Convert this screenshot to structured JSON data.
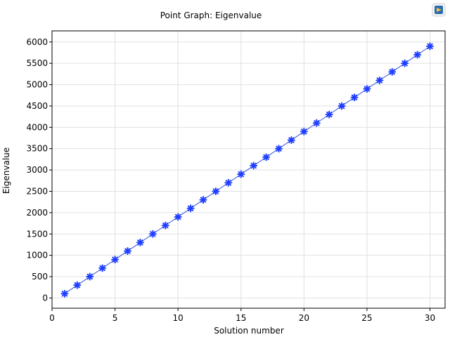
{
  "chart_data": {
    "type": "line",
    "title": "Point Graph: Eigenvalue",
    "xlabel": "Solution number",
    "ylabel": "Eigenvalue",
    "xlim": [
      0,
      31.2
    ],
    "ylim": [
      -240,
      6260
    ],
    "x_ticks": [
      0,
      5,
      10,
      15,
      20,
      25,
      30
    ],
    "y_ticks": [
      0,
      500,
      1000,
      1500,
      2000,
      2500,
      3000,
      3500,
      4000,
      4500,
      5000,
      5500,
      6000
    ],
    "grid": true,
    "legend": "none",
    "marker": "asterisk",
    "series_color": "#1f3fff",
    "line_color": "#3355dd",
    "grid_color": "#e0e0e0",
    "x": [
      1,
      2,
      3,
      4,
      5,
      6,
      7,
      8,
      9,
      10,
      11,
      12,
      13,
      14,
      15,
      16,
      17,
      18,
      19,
      20,
      21,
      22,
      23,
      24,
      25,
      26,
      27,
      28,
      29,
      30
    ],
    "series": [
      {
        "values": [
          100,
          300,
          500,
          700,
          900,
          1100,
          1300,
          1500,
          1700,
          1900,
          2100,
          2300,
          2500,
          2700,
          2900,
          3100,
          3300,
          3500,
          3700,
          3900,
          4100,
          4300,
          4500,
          4700,
          4900,
          5100,
          5300,
          5500,
          5700,
          5900
        ]
      }
    ]
  },
  "toolbar": {
    "export_icon": "export-icon"
  }
}
